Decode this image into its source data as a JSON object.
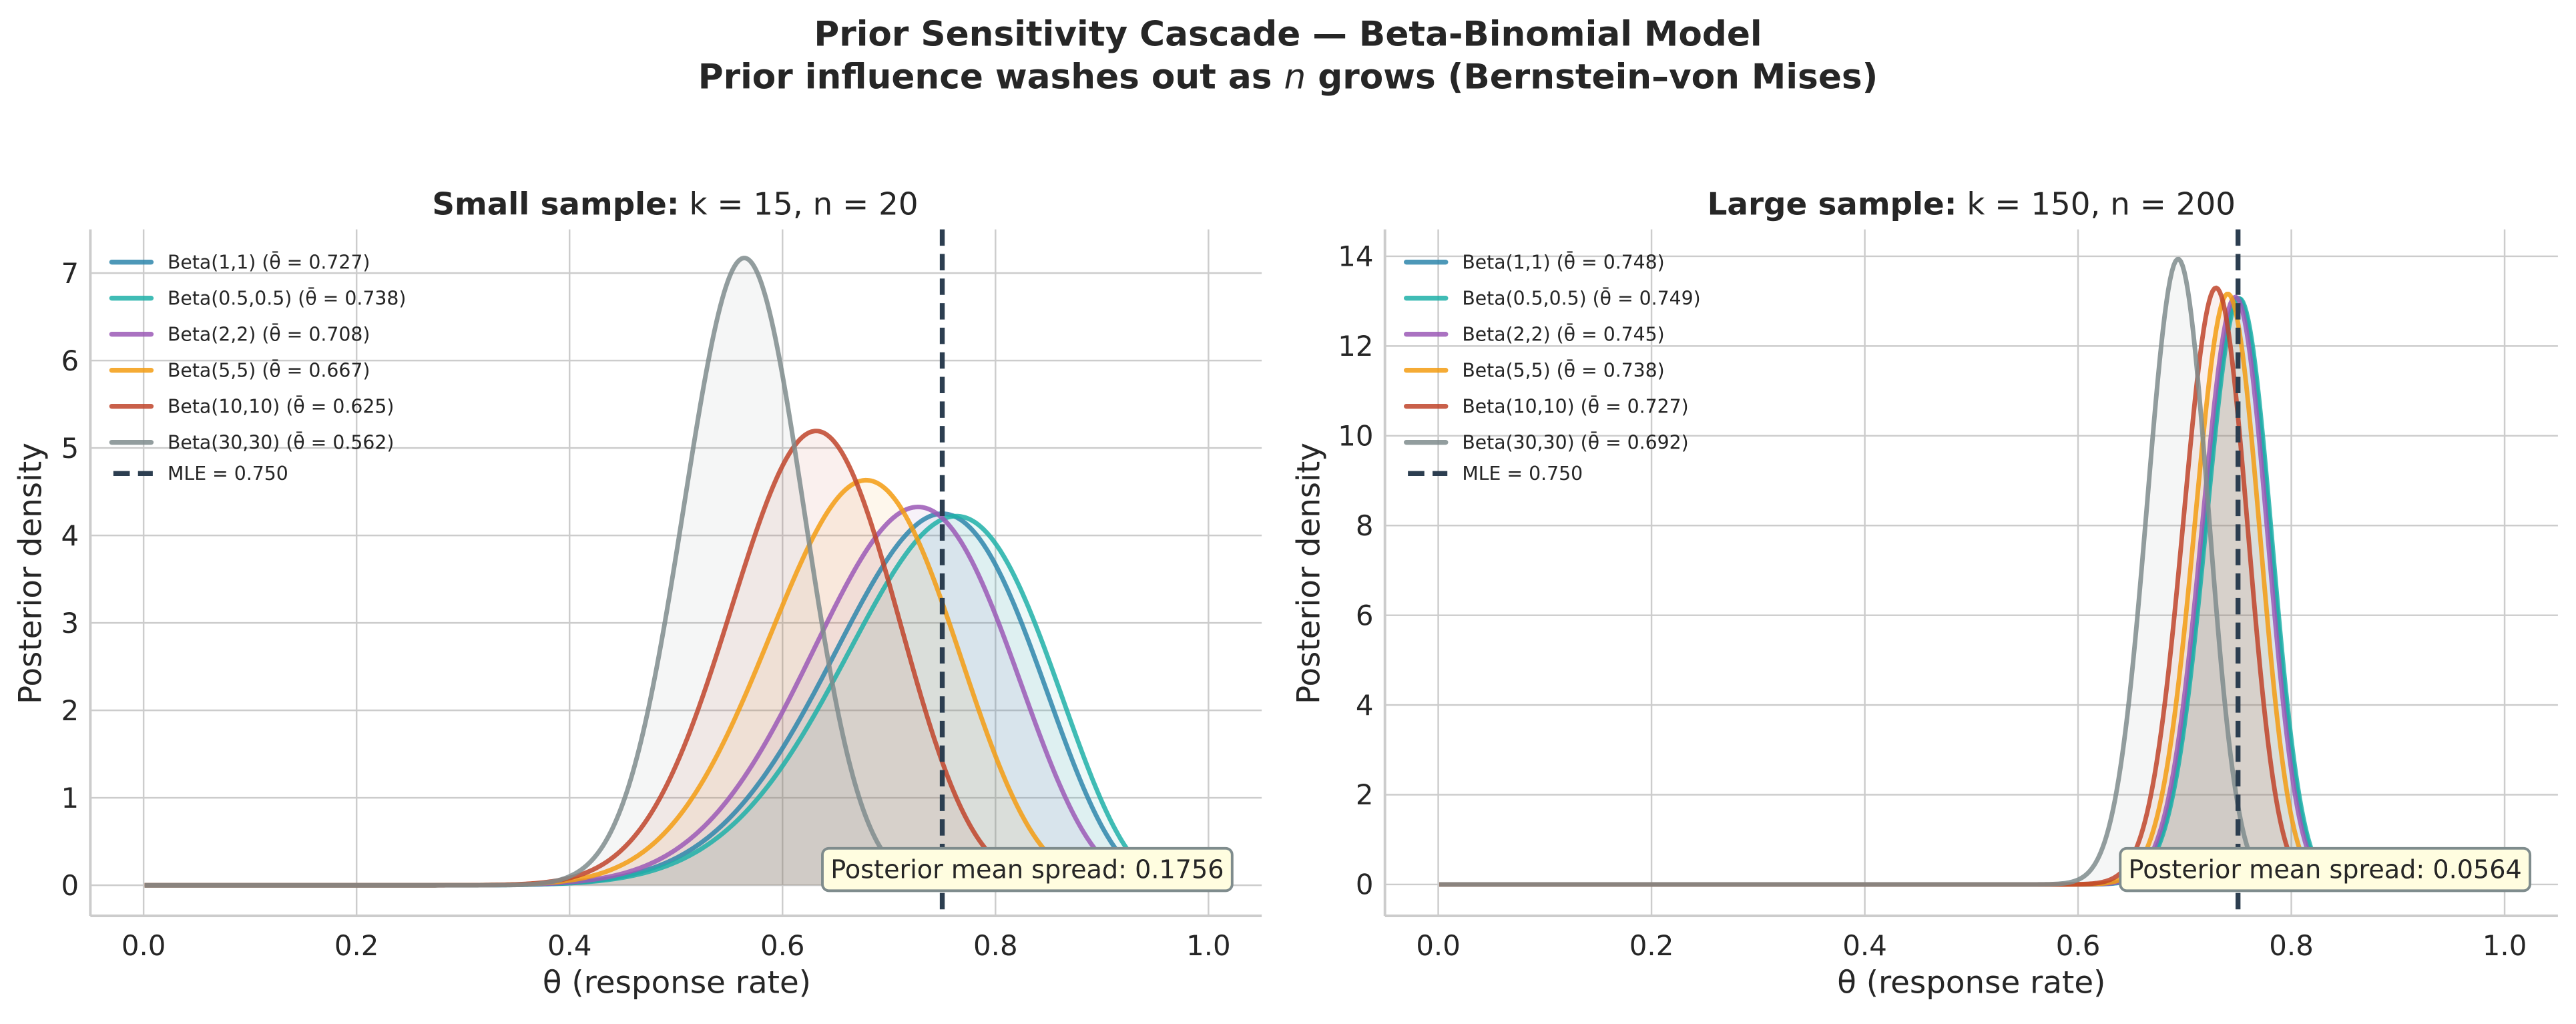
{
  "figure": {
    "title_line1": "Prior Sensitivity Cascade — Beta-Binomial Model",
    "title_line2_pre": "Prior influence washes out as ",
    "title_line2_var": "n",
    "title_line2_post": " grows (Bernstein–von Mises)"
  },
  "chart_data": [
    {
      "type": "line",
      "panel": "left",
      "title_bold": "Small sample:",
      "title_rest": "k = 15, n = 20",
      "k": 15,
      "n": 20,
      "xlabel": "θ (response rate)",
      "ylabel": "Posterior density",
      "xlim": [
        -0.05,
        1.05
      ],
      "ylim": [
        -0.35,
        7.5
      ],
      "xticks": [
        0.0,
        0.2,
        0.4,
        0.6,
        0.8,
        1.0
      ],
      "xtick_labels": [
        "0.0",
        "0.2",
        "0.4",
        "0.6",
        "0.8",
        "1.0"
      ],
      "yticks": [
        0,
        1,
        2,
        3,
        4,
        5,
        6,
        7
      ],
      "ytick_labels": [
        "0",
        "1",
        "2",
        "3",
        "4",
        "5",
        "6",
        "7"
      ],
      "grid": true,
      "legend_position": "top-left",
      "series": [
        {
          "name": "Beta(1,1)",
          "alpha": 1,
          "beta": 1,
          "posterior_mean": 0.727,
          "label": "Beta(1,1)  (θ̄ = 0.727)",
          "color": "#2e86ab"
        },
        {
          "name": "Beta(0.5,0.5)",
          "alpha": 0.5,
          "beta": 0.5,
          "posterior_mean": 0.738,
          "label": "Beta(0.5,0.5)  (θ̄ = 0.738)",
          "color": "#1fb0a8"
        },
        {
          "name": "Beta(2,2)",
          "alpha": 2,
          "beta": 2,
          "posterior_mean": 0.708,
          "label": "Beta(2,2)  (θ̄ = 0.708)",
          "color": "#9b59b6"
        },
        {
          "name": "Beta(5,5)",
          "alpha": 5,
          "beta": 5,
          "posterior_mean": 0.667,
          "label": "Beta(5,5)  (θ̄ = 0.667)",
          "color": "#f39c12"
        },
        {
          "name": "Beta(10,10)",
          "alpha": 10,
          "beta": 10,
          "posterior_mean": 0.625,
          "label": "Beta(10,10)  (θ̄ = 0.625)",
          "color": "#c0442a"
        },
        {
          "name": "Beta(30,30)",
          "alpha": 30,
          "beta": 30,
          "posterior_mean": 0.562,
          "label": "Beta(30,30)  (θ̄ = 0.562)",
          "color": "#7f8c8d"
        }
      ],
      "mle": {
        "value": 0.75,
        "label": "MLE = 0.750",
        "color": "#2c3e50"
      },
      "annotation": "Posterior mean spread: 0.1756"
    },
    {
      "type": "line",
      "panel": "right",
      "title_bold": "Large sample:",
      "title_rest": "k = 150, n = 200",
      "k": 150,
      "n": 200,
      "xlabel": "θ (response rate)",
      "ylabel": "Posterior density",
      "xlim": [
        -0.05,
        1.05
      ],
      "ylim": [
        -0.7,
        14.6
      ],
      "xticks": [
        0.0,
        0.2,
        0.4,
        0.6,
        0.8,
        1.0
      ],
      "xtick_labels": [
        "0.0",
        "0.2",
        "0.4",
        "0.6",
        "0.8",
        "1.0"
      ],
      "yticks": [
        0,
        2,
        4,
        6,
        8,
        10,
        12,
        14
      ],
      "ytick_labels": [
        "0",
        "2",
        "4",
        "6",
        "8",
        "10",
        "12",
        "14"
      ],
      "grid": true,
      "legend_position": "top-left",
      "series": [
        {
          "name": "Beta(1,1)",
          "alpha": 1,
          "beta": 1,
          "posterior_mean": 0.748,
          "label": "Beta(1,1)  (θ̄ = 0.748)",
          "color": "#2e86ab"
        },
        {
          "name": "Beta(0.5,0.5)",
          "alpha": 0.5,
          "beta": 0.5,
          "posterior_mean": 0.749,
          "label": "Beta(0.5,0.5)  (θ̄ = 0.749)",
          "color": "#1fb0a8"
        },
        {
          "name": "Beta(2,2)",
          "alpha": 2,
          "beta": 2,
          "posterior_mean": 0.745,
          "label": "Beta(2,2)  (θ̄ = 0.745)",
          "color": "#9b59b6"
        },
        {
          "name": "Beta(5,5)",
          "alpha": 5,
          "beta": 5,
          "posterior_mean": 0.738,
          "label": "Beta(5,5)  (θ̄ = 0.738)",
          "color": "#f39c12"
        },
        {
          "name": "Beta(10,10)",
          "alpha": 10,
          "beta": 10,
          "posterior_mean": 0.727,
          "label": "Beta(10,10)  (θ̄ = 0.727)",
          "color": "#c0442a"
        },
        {
          "name": "Beta(30,30)",
          "alpha": 30,
          "beta": 30,
          "posterior_mean": 0.692,
          "label": "Beta(30,30)  (θ̄ = 0.692)",
          "color": "#7f8c8d"
        }
      ],
      "mle": {
        "value": 0.75,
        "label": "MLE = 0.750",
        "color": "#2c3e50"
      },
      "annotation": "Posterior mean spread: 0.0564"
    }
  ],
  "style": {
    "annotation_bg": "#fffde0",
    "annotation_border": "#7f8c8d",
    "grid_color": "#cccccc",
    "text_color": "#262626"
  }
}
